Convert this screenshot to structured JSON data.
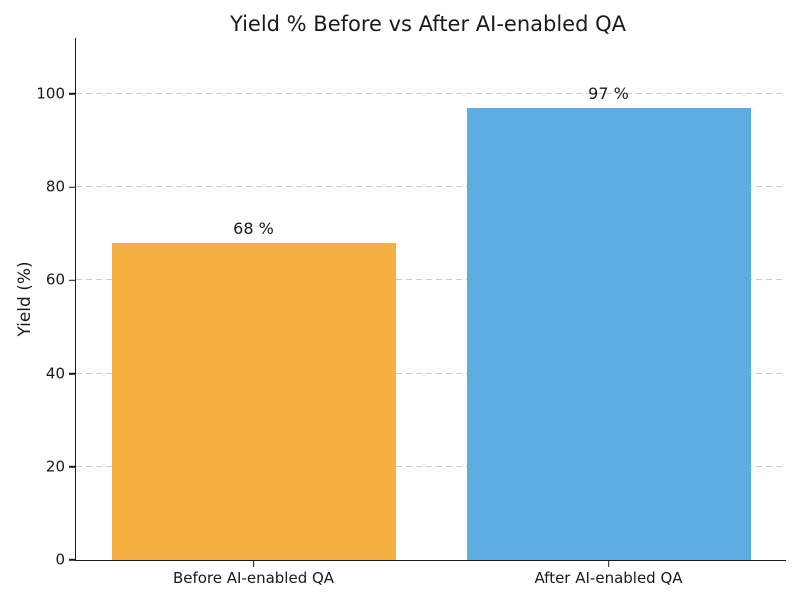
{
  "figure": {
    "background_color": "#ffffff",
    "text_color": "#1a1a1a",
    "grid_color": "#cccccc",
    "spine_color": "#1a1a1a"
  },
  "chart_data": {
    "type": "bar",
    "title": "Yield % Before vs After AI-enabled QA",
    "xlabel": "",
    "ylabel": "Yield (%)",
    "categories": [
      "Before AI-enabled QA",
      "After AI-enabled QA"
    ],
    "values": [
      68,
      97
    ],
    "bar_labels": [
      "68 %",
      "97 %"
    ],
    "bar_colors": [
      "#F5B041",
      "#5DADE2"
    ],
    "ylim": [
      0,
      112
    ],
    "yticks": [
      0,
      20,
      40,
      60,
      80,
      100
    ],
    "bar_width_fraction": 0.8,
    "grid": "horizontal-dashed",
    "legend": "none"
  }
}
